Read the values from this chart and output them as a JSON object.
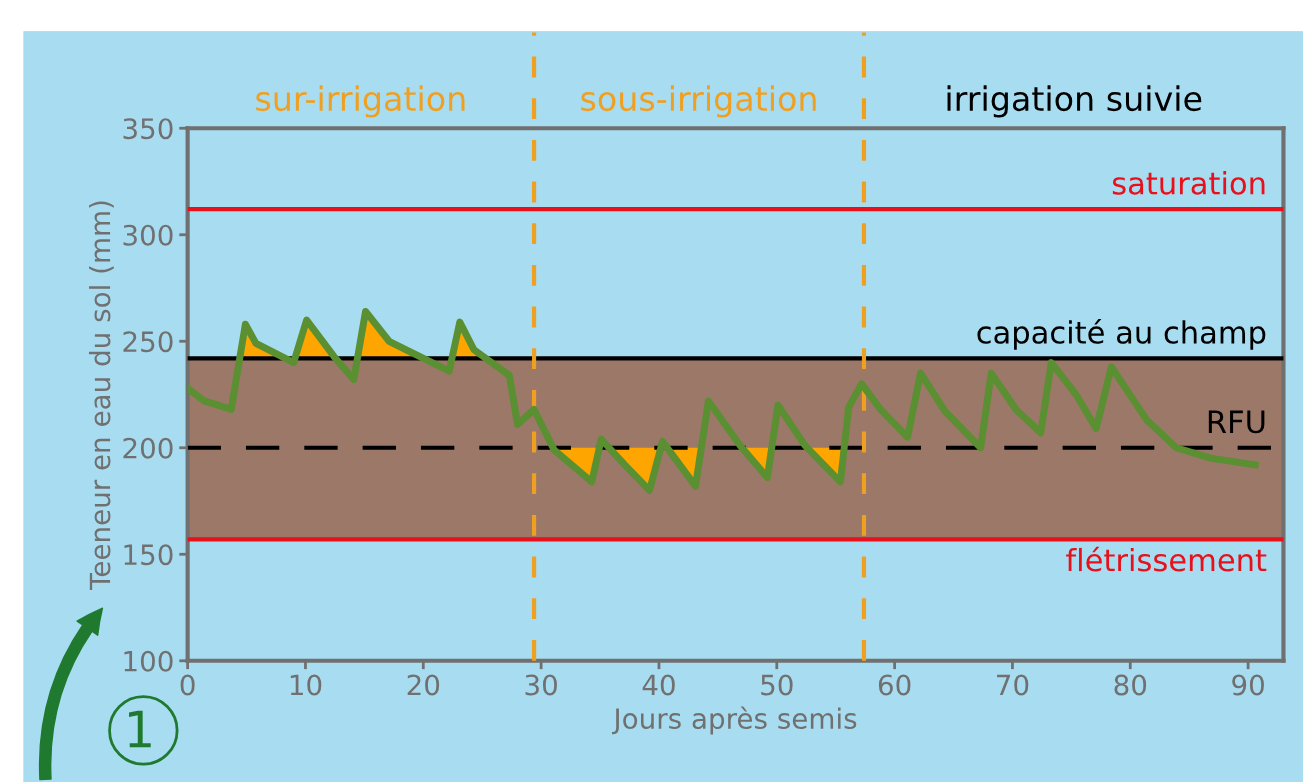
{
  "chart_data": {
    "type": "line",
    "xlabel": "Jours après semis",
    "ylabel": "Teeneur en eau du sol (mm)",
    "xlim": [
      0,
      93
    ],
    "ylim": [
      100,
      350
    ],
    "xticks": [
      0,
      10,
      20,
      30,
      40,
      50,
      60,
      70,
      80,
      90
    ],
    "yticks": [
      100,
      150,
      200,
      250,
      300,
      350
    ],
    "grid": false,
    "legend": false,
    "marker": "none",
    "line_style": "solid",
    "series": [
      {
        "color": "#5a8f32",
        "x": [
          0,
          1.4,
          3.7,
          4.9,
          5.8,
          9,
          10.1,
          12.4,
          14.1,
          15.1,
          17.1,
          22.2,
          23.1,
          24.3,
          27.3,
          28,
          29.4,
          31.1,
          34.3,
          35.1,
          37.1,
          39.2,
          40.3,
          43.1,
          44.2,
          46.9,
          49.2,
          50.1,
          52.4,
          55.4,
          56.1,
          57.2,
          58.8,
          61.1,
          62.2,
          64.3,
          67.3,
          68.2,
          70.3,
          72.4,
          73.3,
          75.4,
          77.1,
          78.4,
          81.4,
          83.9,
          86.9,
          90.6
        ],
        "values": [
          228,
          222,
          218,
          258,
          249,
          240,
          260,
          243,
          232,
          264,
          250,
          236,
          259,
          246,
          234,
          211,
          218,
          199,
          184,
          204,
          192,
          180,
          203,
          182,
          222,
          201,
          186,
          220,
          201,
          184,
          219,
          230,
          218,
          205,
          235,
          217,
          200,
          235,
          218,
          207,
          240,
          225,
          209,
          238,
          213,
          200,
          195,
          192
        ]
      },
      {
        "type": "area",
        "color": "#ffa500",
        "x": [
          4.42,
          4.9,
          5.8,
          8.29,
          9.11,
          10.1,
          12.4,
          12.55,
          14.41,
          15.1,
          17.1,
          20.01,
          22.43,
          23.1,
          24.3,
          25.3
        ],
        "values": [
          242,
          258,
          249,
          242,
          242,
          260,
          243,
          242,
          242,
          264,
          250,
          242,
          242,
          259,
          246,
          242
        ]
      },
      {
        "type": "area",
        "color": "#ffa500",
        "x": [
          31.01,
          31.1,
          34.3,
          34.94,
          35.77,
          37.1,
          39.2,
          40.16,
          40.7,
          43.1,
          43.6,
          47.05,
          49.2,
          49.57,
          52.58,
          55.4,
          55.72
        ],
        "values": [
          200,
          199,
          184,
          200,
          200,
          192,
          180,
          200,
          200,
          182,
          200,
          200,
          186,
          200,
          200,
          184,
          200
        ]
      }
    ],
    "bands": [
      {
        "axis": "y",
        "from": 157,
        "to": 242,
        "color": "#9c7868"
      }
    ],
    "ref_lines": [
      {
        "axis": "y",
        "value": 312,
        "label": "saturation",
        "color": "#e8101a",
        "line_style": "solid"
      },
      {
        "axis": "y",
        "value": 242,
        "label": "capacité au champ",
        "color": "#000000",
        "line_style": "solid"
      },
      {
        "axis": "y",
        "value": 200,
        "label": "RFU",
        "color": "#000000",
        "line_style": "dashed"
      },
      {
        "axis": "y",
        "value": 157,
        "label": "flétrissement",
        "color": "#e8101a",
        "line_style": "solid"
      },
      {
        "axis": "x",
        "value": 29.4,
        "color": "#f0a020",
        "line_style": "dashed"
      },
      {
        "axis": "x",
        "value": 57.4,
        "color": "#f0a020",
        "line_style": "dashed"
      }
    ],
    "annotations": [
      "sur-irrigation",
      "sous-irrigation",
      "irrigation suivie",
      "1"
    ]
  }
}
